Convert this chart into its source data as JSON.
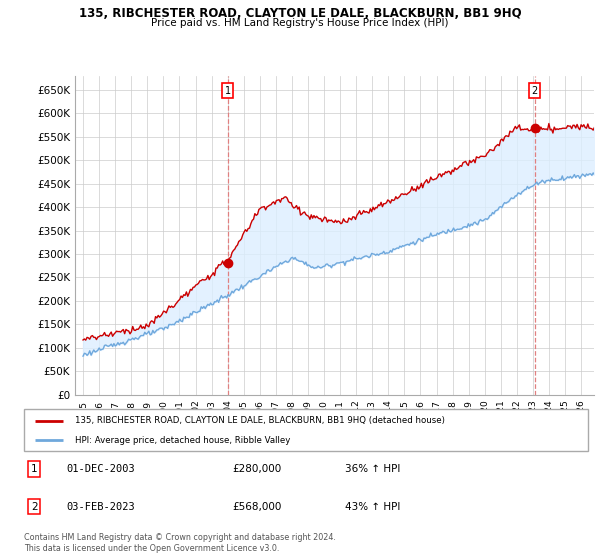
{
  "title_line1": "135, RIBCHESTER ROAD, CLAYTON LE DALE, BLACKBURN, BB1 9HQ",
  "title_line2": "Price paid vs. HM Land Registry's House Price Index (HPI)",
  "ylabel_ticks": [
    "£0",
    "£50K",
    "£100K",
    "£150K",
    "£200K",
    "£250K",
    "£300K",
    "£350K",
    "£400K",
    "£450K",
    "£500K",
    "£550K",
    "£600K",
    "£650K"
  ],
  "ytick_values": [
    0,
    50000,
    100000,
    150000,
    200000,
    250000,
    300000,
    350000,
    400000,
    450000,
    500000,
    550000,
    600000,
    650000
  ],
  "ylim": [
    0,
    680000
  ],
  "hpi_color": "#6fa8dc",
  "hpi_fill_color": "#dceeff",
  "price_color": "#cc0000",
  "dashed_color": "#e08080",
  "marker1_x": 2004.0,
  "marker1_y": 280000,
  "marker2_x": 2023.1,
  "marker2_y": 568000,
  "legend_label1": "135, RIBCHESTER ROAD, CLAYTON LE DALE, BLACKBURN, BB1 9HQ (detached house)",
  "legend_label2": "HPI: Average price, detached house, Ribble Valley",
  "footnote": "Contains HM Land Registry data © Crown copyright and database right 2024.\nThis data is licensed under the Open Government Licence v3.0.",
  "background_color": "#ffffff",
  "grid_color": "#cccccc",
  "xlim_left": 1994.5,
  "xlim_right": 2026.8,
  "x_start": 1995,
  "x_end": 2026
}
